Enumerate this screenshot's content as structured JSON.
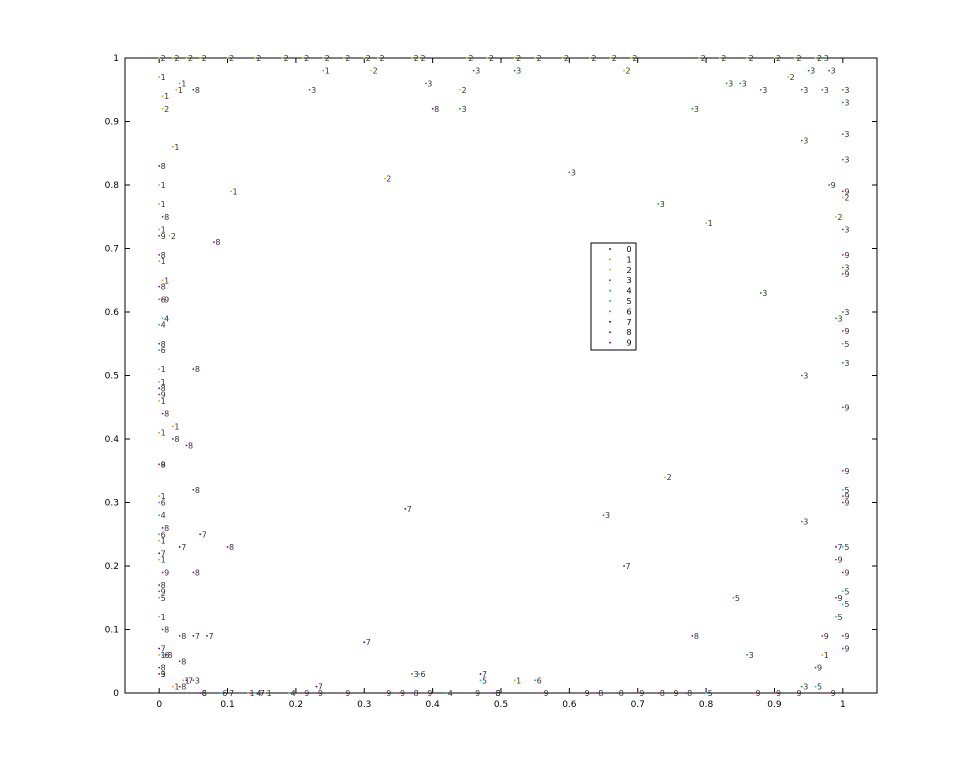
{
  "chart_data": {
    "type": "scatter",
    "title": "",
    "xlabel": "",
    "ylabel": "",
    "xlim": [
      -0.05,
      1.05
    ],
    "ylim": [
      0,
      1
    ],
    "xticks": [
      "0",
      "0.1",
      "0.2",
      "0.3",
      "0.4",
      "0.5",
      "0.6",
      "0.7",
      "0.8",
      "0.9",
      "1"
    ],
    "xtick_values": [
      0,
      0.1,
      0.2,
      0.3,
      0.4,
      0.5,
      0.6,
      0.7,
      0.8,
      0.9,
      1
    ],
    "yticks": [
      "0",
      "0.1",
      "0.2",
      "0.3",
      "0.4",
      "0.5",
      "0.6",
      "0.7",
      "0.8",
      "0.9",
      "1"
    ],
    "ytick_values": [
      0,
      0.1,
      0.2,
      0.3,
      0.4,
      0.5,
      0.6,
      0.7,
      0.8,
      0.9,
      1
    ],
    "grid": false,
    "legend_position": "center-right",
    "series": [
      {
        "name": "0",
        "color": "#800080",
        "points": []
      },
      {
        "name": "1",
        "color": "#ff8c00",
        "points": [
          [
            0.03,
            0.96
          ],
          [
            0.025,
            0.95
          ],
          [
            0.0,
            0.97
          ],
          [
            0.005,
            0.94
          ],
          [
            0.02,
            0.86
          ],
          [
            0.105,
            0.79
          ],
          [
            0.0,
            0.8
          ],
          [
            0.0,
            0.77
          ],
          [
            0.0,
            0.73
          ],
          [
            0.0,
            0.68
          ],
          [
            0.005,
            0.65
          ],
          [
            0.0,
            0.51
          ],
          [
            0.0,
            0.49
          ],
          [
            0.0,
            0.46
          ],
          [
            0.02,
            0.42
          ],
          [
            0.0,
            0.41
          ],
          [
            0.0,
            0.31
          ],
          [
            0.0,
            0.24
          ],
          [
            0.0,
            0.21
          ],
          [
            0.0,
            0.12
          ],
          [
            0.0,
            0.06
          ],
          [
            0.035,
            0.02
          ],
          [
            0.02,
            0.01
          ],
          [
            0.24,
            0.98
          ],
          [
            0.8,
            0.74
          ],
          [
            0.52,
            0.02
          ],
          [
            0.97,
            0.06
          ],
          [
            0.13,
            0.0
          ],
          [
            0.155,
            0.0
          ]
        ]
      },
      {
        "name": "2",
        "color": "#c8c800",
        "points": [
          [
            0.015,
            0.72
          ],
          [
            0.005,
            0.92
          ],
          [
            0.0,
            1.0
          ],
          [
            0.02,
            1.0
          ],
          [
            0.04,
            1.0
          ],
          [
            0.06,
            1.0
          ],
          [
            0.1,
            1.0
          ],
          [
            0.14,
            1.0
          ],
          [
            0.18,
            1.0
          ],
          [
            0.21,
            1.0
          ],
          [
            0.24,
            1.0
          ],
          [
            0.27,
            1.0
          ],
          [
            0.3,
            1.0
          ],
          [
            0.32,
            1.0
          ],
          [
            0.37,
            1.0
          ],
          [
            0.38,
            1.0
          ],
          [
            0.45,
            1.0
          ],
          [
            0.48,
            1.0
          ],
          [
            0.52,
            1.0
          ],
          [
            0.55,
            1.0
          ],
          [
            0.59,
            1.0
          ],
          [
            0.63,
            1.0
          ],
          [
            0.66,
            1.0
          ],
          [
            0.69,
            1.0
          ],
          [
            0.79,
            1.0
          ],
          [
            0.82,
            1.0
          ],
          [
            0.86,
            1.0
          ],
          [
            0.9,
            1.0
          ],
          [
            0.93,
            1.0
          ],
          [
            0.96,
            1.0
          ],
          [
            0.31,
            0.98
          ],
          [
            0.44,
            0.95
          ],
          [
            0.68,
            0.98
          ],
          [
            0.92,
            0.97
          ],
          [
            0.74,
            0.34
          ],
          [
            0.33,
            0.81
          ],
          [
            0.99,
            0.75
          ],
          [
            1.0,
            0.78
          ]
        ]
      },
      {
        "name": "3",
        "color": "#00a000",
        "points": [
          [
            0.22,
            0.95
          ],
          [
            0.39,
            0.96
          ],
          [
            0.44,
            0.92
          ],
          [
            0.46,
            0.98
          ],
          [
            0.52,
            0.98
          ],
          [
            0.6,
            0.82
          ],
          [
            0.73,
            0.77
          ],
          [
            0.78,
            0.92
          ],
          [
            0.83,
            0.96
          ],
          [
            0.85,
            0.96
          ],
          [
            0.88,
            0.95
          ],
          [
            0.94,
            0.95
          ],
          [
            0.97,
            0.95
          ],
          [
            0.94,
            0.87
          ],
          [
            0.88,
            0.63
          ],
          [
            0.94,
            0.5
          ],
          [
            0.94,
            0.27
          ],
          [
            0.65,
            0.28
          ],
          [
            0.86,
            0.06
          ],
          [
            0.94,
            0.01
          ],
          [
            0.37,
            0.03
          ],
          [
            1.0,
            0.95
          ],
          [
            1.0,
            0.93
          ],
          [
            1.0,
            0.88
          ],
          [
            1.0,
            0.84
          ],
          [
            1.0,
            0.73
          ],
          [
            1.0,
            0.67
          ],
          [
            1.0,
            0.6
          ],
          [
            0.99,
            0.59
          ],
          [
            1.0,
            0.52
          ],
          [
            0.97,
            1.0
          ],
          [
            0.98,
            0.98
          ],
          [
            0.95,
            0.98
          ],
          [
            0.05,
            0.02
          ],
          [
            0.0,
            0.03
          ]
        ]
      },
      {
        "name": "4",
        "color": "#20b2aa",
        "points": [
          [
            0.0,
            0.58
          ],
          [
            0.005,
            0.59
          ],
          [
            0.0,
            0.28
          ],
          [
            0.14,
            0.0
          ],
          [
            0.19,
            0.0
          ],
          [
            0.42,
            0.0
          ]
        ]
      },
      {
        "name": "5",
        "color": "#00bfff",
        "points": [
          [
            0.84,
            0.15
          ],
          [
            0.99,
            0.12
          ],
          [
            0.96,
            0.01
          ],
          [
            1.0,
            0.16
          ],
          [
            1.0,
            0.14
          ],
          [
            1.0,
            0.32
          ],
          [
            1.0,
            0.23
          ],
          [
            1.0,
            0.55
          ],
          [
            0.0,
            0.15
          ],
          [
            0.47,
            0.02
          ],
          [
            0.49,
            0.0
          ],
          [
            0.8,
            0.0
          ]
        ]
      },
      {
        "name": "6",
        "color": "#1e90ff",
        "points": [
          [
            0.0,
            0.62
          ],
          [
            0.0,
            0.54
          ],
          [
            0.0,
            0.3
          ],
          [
            0.0,
            0.25
          ],
          [
            0.005,
            0.06
          ],
          [
            0.55,
            0.02
          ],
          [
            0.38,
            0.03
          ],
          [
            0.09,
            0.0
          ],
          [
            0.06,
            0.0
          ]
        ]
      },
      {
        "name": "7",
        "color": "#4b0082",
        "points": [
          [
            0.36,
            0.29
          ],
          [
            0.3,
            0.08
          ],
          [
            0.68,
            0.2
          ],
          [
            0.07,
            0.09
          ],
          [
            0.06,
            0.25
          ],
          [
            0.03,
            0.23
          ],
          [
            0.23,
            0.01
          ],
          [
            0.47,
            0.03
          ],
          [
            0.99,
            0.23
          ],
          [
            0.05,
            0.09
          ],
          [
            0.0,
            0.22
          ],
          [
            0.0,
            0.07
          ],
          [
            0.04,
            0.02
          ],
          [
            0.1,
            0.0
          ],
          [
            0.145,
            0.0
          ]
        ]
      },
      {
        "name": "8",
        "color": "#8b008b",
        "points": [
          [
            0.08,
            0.71
          ],
          [
            0.4,
            0.92
          ],
          [
            0.05,
            0.95
          ],
          [
            0.05,
            0.51
          ],
          [
            0.1,
            0.23
          ],
          [
            0.05,
            0.32
          ],
          [
            0.04,
            0.39
          ],
          [
            0.02,
            0.4
          ],
          [
            0.05,
            0.19
          ],
          [
            0.03,
            0.09
          ],
          [
            0.01,
            0.06
          ],
          [
            0.03,
            0.05
          ],
          [
            0.78,
            0.09
          ],
          [
            0.0,
            0.83
          ],
          [
            0.005,
            0.75
          ],
          [
            0.0,
            0.69
          ],
          [
            0.0,
            0.64
          ],
          [
            0.0,
            0.55
          ],
          [
            0.0,
            0.48
          ],
          [
            0.005,
            0.44
          ],
          [
            0.0,
            0.36
          ],
          [
            0.005,
            0.26
          ],
          [
            0.0,
            0.17
          ],
          [
            0.005,
            0.1
          ],
          [
            0.0,
            0.04
          ],
          [
            0.37,
            0.0
          ],
          [
            0.49,
            0.0
          ],
          [
            0.64,
            0.0
          ],
          [
            0.67,
            0.0
          ],
          [
            0.73,
            0.0
          ],
          [
            0.77,
            0.0
          ],
          [
            0.03,
            0.01
          ],
          [
            0.06,
            0.0
          ]
        ]
      },
      {
        "name": "9",
        "color": "#dc143c",
        "points": [
          [
            0.0,
            0.72
          ],
          [
            0.005,
            0.62
          ],
          [
            0.0,
            0.47
          ],
          [
            0.0,
            0.36
          ],
          [
            0.005,
            0.19
          ],
          [
            0.0,
            0.16
          ],
          [
            0.0,
            0.03
          ],
          [
            0.98,
            0.8
          ],
          [
            1.0,
            0.79
          ],
          [
            1.0,
            0.69
          ],
          [
            1.0,
            0.66
          ],
          [
            1.0,
            0.57
          ],
          [
            1.0,
            0.45
          ],
          [
            1.0,
            0.35
          ],
          [
            1.0,
            0.31
          ],
          [
            1.0,
            0.3
          ],
          [
            0.99,
            0.21
          ],
          [
            1.0,
            0.19
          ],
          [
            0.99,
            0.15
          ],
          [
            1.0,
            0.09
          ],
          [
            1.0,
            0.07
          ],
          [
            0.97,
            0.09
          ],
          [
            0.96,
            0.04
          ],
          [
            0.9,
            0.0
          ],
          [
            0.87,
            0.0
          ],
          [
            0.93,
            0.0
          ],
          [
            0.98,
            0.0
          ],
          [
            0.21,
            0.0
          ],
          [
            0.27,
            0.0
          ],
          [
            0.33,
            0.0
          ],
          [
            0.35,
            0.0
          ],
          [
            0.39,
            0.0
          ],
          [
            0.46,
            0.0
          ],
          [
            0.56,
            0.0
          ],
          [
            0.62,
            0.0
          ],
          [
            0.7,
            0.0
          ],
          [
            0.75,
            0.0
          ],
          [
            0.23,
            0.0
          ]
        ]
      }
    ]
  }
}
